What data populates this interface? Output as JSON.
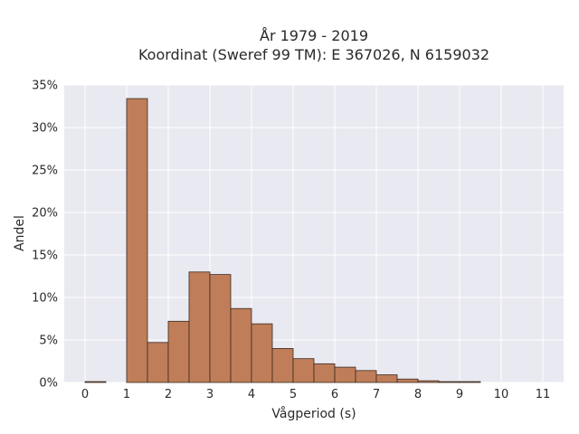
{
  "chart_data": {
    "type": "bar",
    "title_line1": "År 1979 - 2019",
    "title_line2": "Koordinat (Sweref 99 TM): E 367026, N 6159032",
    "xlabel": "Vågperiod (s)",
    "ylabel": "Andel",
    "bin_width": 0.5,
    "bins": [
      {
        "x": 0.0,
        "value": 0.1
      },
      {
        "x": 1.0,
        "value": 33.4
      },
      {
        "x": 1.5,
        "value": 4.7
      },
      {
        "x": 2.0,
        "value": 7.2
      },
      {
        "x": 2.5,
        "value": 13.0
      },
      {
        "x": 3.0,
        "value": 12.7
      },
      {
        "x": 3.5,
        "value": 8.7
      },
      {
        "x": 4.0,
        "value": 6.9
      },
      {
        "x": 4.5,
        "value": 4.0
      },
      {
        "x": 5.0,
        "value": 2.8
      },
      {
        "x": 5.5,
        "value": 2.2
      },
      {
        "x": 6.0,
        "value": 1.8
      },
      {
        "x": 6.5,
        "value": 1.4
      },
      {
        "x": 7.0,
        "value": 0.9
      },
      {
        "x": 7.5,
        "value": 0.4
      },
      {
        "x": 8.0,
        "value": 0.2
      },
      {
        "x": 8.5,
        "value": 0.1
      },
      {
        "x": 9.0,
        "value": 0.1
      }
    ],
    "xlim": [
      -0.5,
      11.5
    ],
    "ylim": [
      0,
      35
    ],
    "xticks": [
      "0",
      "1",
      "2",
      "3",
      "4",
      "5",
      "6",
      "7",
      "8",
      "9",
      "10",
      "11"
    ],
    "yticks": [
      "0%",
      "5%",
      "10%",
      "15%",
      "20%",
      "25%",
      "30%",
      "35%"
    ],
    "grid": true,
    "colors": {
      "bar_fill": "#bd7850",
      "bar_stroke": "#3a2a20",
      "plot_bg": "#e9e9f1",
      "grid": "#ffffff"
    }
  }
}
